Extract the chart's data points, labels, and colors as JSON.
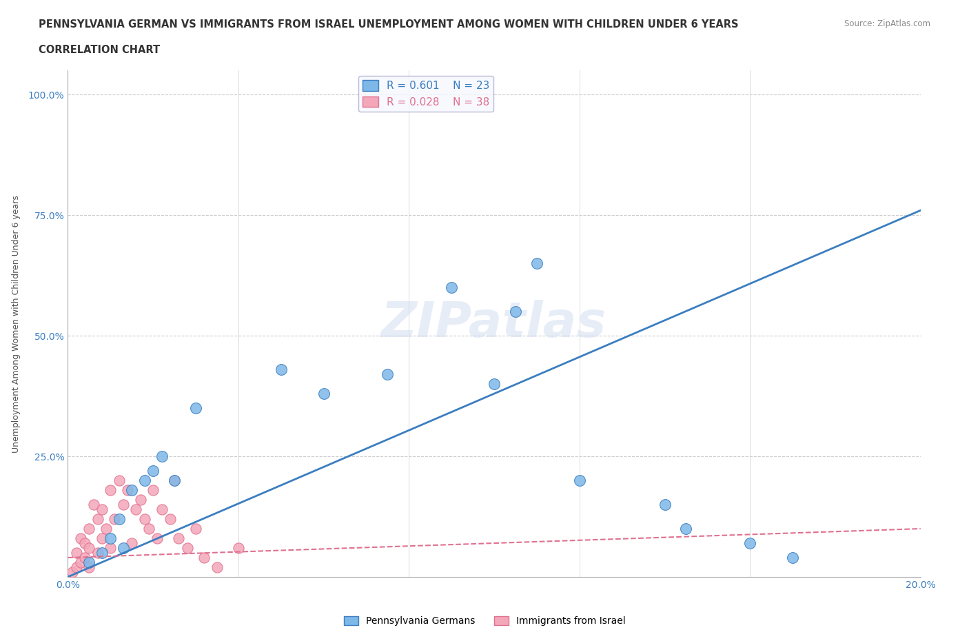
{
  "title_line1": "PENNSYLVANIA GERMAN VS IMMIGRANTS FROM ISRAEL UNEMPLOYMENT AMONG WOMEN WITH CHILDREN UNDER 6 YEARS",
  "title_line2": "CORRELATION CHART",
  "source": "Source: ZipAtlas.com",
  "ylabel": "Unemployment Among Women with Children Under 6 years",
  "xlim": [
    0.0,
    0.2
  ],
  "ylim": [
    0.0,
    1.05
  ],
  "xticks": [
    0.0,
    0.04,
    0.08,
    0.12,
    0.16,
    0.2
  ],
  "xticklabels": [
    "0.0%",
    "",
    "",
    "",
    "",
    "20.0%"
  ],
  "yticks": [
    0.0,
    0.25,
    0.5,
    0.75,
    1.0
  ],
  "yticklabels": [
    "",
    "25.0%",
    "50.0%",
    "75.0%",
    "100.0%"
  ],
  "blue_R": 0.601,
  "blue_N": 23,
  "pink_R": 0.028,
  "pink_N": 38,
  "blue_color": "#7EB8E8",
  "pink_color": "#F4A7B9",
  "blue_line_color": "#3B7EC0",
  "pink_line_color": "#E07090",
  "grid_color": "#CCCCCC",
  "background_color": "#FFFFFF",
  "watermark": "ZIPatlas",
  "blue_scatter_x": [
    0.005,
    0.008,
    0.01,
    0.012,
    0.013,
    0.015,
    0.018,
    0.02,
    0.022,
    0.025,
    0.03,
    0.05,
    0.06,
    0.075,
    0.09,
    0.1,
    0.105,
    0.11,
    0.12,
    0.14,
    0.145,
    0.16,
    0.17
  ],
  "blue_scatter_y": [
    0.03,
    0.05,
    0.08,
    0.12,
    0.06,
    0.18,
    0.2,
    0.22,
    0.25,
    0.2,
    0.35,
    0.43,
    0.38,
    0.42,
    0.6,
    0.4,
    0.55,
    0.65,
    0.2,
    0.15,
    0.1,
    0.07,
    0.04
  ],
  "pink_scatter_x": [
    0.001,
    0.002,
    0.002,
    0.003,
    0.003,
    0.004,
    0.004,
    0.005,
    0.005,
    0.005,
    0.006,
    0.007,
    0.007,
    0.008,
    0.008,
    0.009,
    0.01,
    0.01,
    0.011,
    0.012,
    0.013,
    0.014,
    0.015,
    0.016,
    0.017,
    0.018,
    0.019,
    0.02,
    0.021,
    0.022,
    0.024,
    0.025,
    0.026,
    0.028,
    0.03,
    0.032,
    0.035,
    0.04
  ],
  "pink_scatter_y": [
    0.01,
    0.02,
    0.05,
    0.03,
    0.08,
    0.04,
    0.07,
    0.02,
    0.06,
    0.1,
    0.15,
    0.05,
    0.12,
    0.08,
    0.14,
    0.1,
    0.06,
    0.18,
    0.12,
    0.2,
    0.15,
    0.18,
    0.07,
    0.14,
    0.16,
    0.12,
    0.1,
    0.18,
    0.08,
    0.14,
    0.12,
    0.2,
    0.08,
    0.06,
    0.1,
    0.04,
    0.02,
    0.06
  ],
  "blue_trendline_x": [
    0.0,
    0.2
  ],
  "blue_trendline_y": [
    0.0,
    0.76
  ],
  "pink_trendline_x": [
    0.0,
    0.2
  ],
  "pink_trendline_y": [
    0.04,
    0.1
  ],
  "legend_box_color": "#F0F4FF",
  "legend_border_color": "#AAAACC"
}
